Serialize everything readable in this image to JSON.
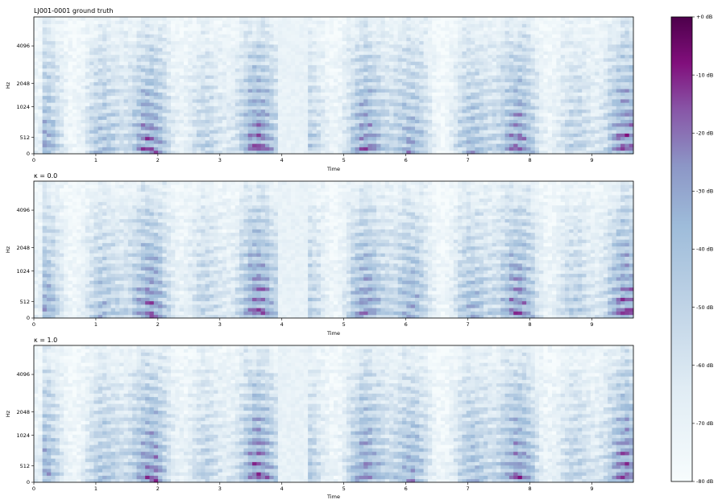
{
  "figure": {
    "colorbar": {
      "label_suffix": "dB",
      "ticks": [
        "+0 dB",
        "-10 dB",
        "-20 dB",
        "-30 dB",
        "-40 dB",
        "-50 dB",
        "-60 dB",
        "-70 dB",
        "-80 dB"
      ],
      "range": [
        -80,
        0
      ],
      "colormap": [
        "#f7fcfd",
        "#bfd3e6",
        "#8c96c6",
        "#8856a7",
        "#810f7c",
        "#4d004b"
      ]
    }
  },
  "chart_data": [
    {
      "type": "heatmap",
      "title": "LJ001-0001 ground truth",
      "xlabel": "Time",
      "ylabel": "Hz",
      "xlim": [
        0,
        9.67
      ],
      "y_scale": "mel",
      "xticks": [
        "0",
        "1",
        "2",
        "3",
        "4",
        "5",
        "6",
        "7",
        "8",
        "9"
      ],
      "yticks": [
        "0",
        "512",
        "1024",
        "2048",
        "4096"
      ],
      "colorbar_range_db": [
        -80,
        0
      ],
      "silence_regions_s": [
        [
          3.92,
          4.45
        ]
      ]
    },
    {
      "type": "heatmap",
      "title": "κ = 0.0",
      "xlabel": "Time",
      "ylabel": "Hz",
      "xlim": [
        0,
        9.67
      ],
      "y_scale": "mel",
      "xticks": [
        "0",
        "1",
        "2",
        "3",
        "4",
        "5",
        "6",
        "7",
        "8",
        "9"
      ],
      "yticks": [
        "0",
        "512",
        "1024",
        "2048",
        "4096"
      ],
      "colorbar_range_db": [
        -80,
        0
      ],
      "silence_regions_s": [
        [
          3.92,
          4.45
        ]
      ]
    },
    {
      "type": "heatmap",
      "title": "κ = 1.0",
      "xlabel": "Time",
      "ylabel": "Hz",
      "xlim": [
        0,
        9.67
      ],
      "y_scale": "mel",
      "xticks": [
        "0",
        "1",
        "2",
        "3",
        "4",
        "5",
        "6",
        "7",
        "8",
        "9"
      ],
      "yticks": [
        "0",
        "512",
        "1024",
        "2048",
        "4096"
      ],
      "colorbar_range_db": [
        -80,
        0
      ],
      "silence_regions_s": [
        [
          3.92,
          4.45
        ]
      ]
    }
  ]
}
